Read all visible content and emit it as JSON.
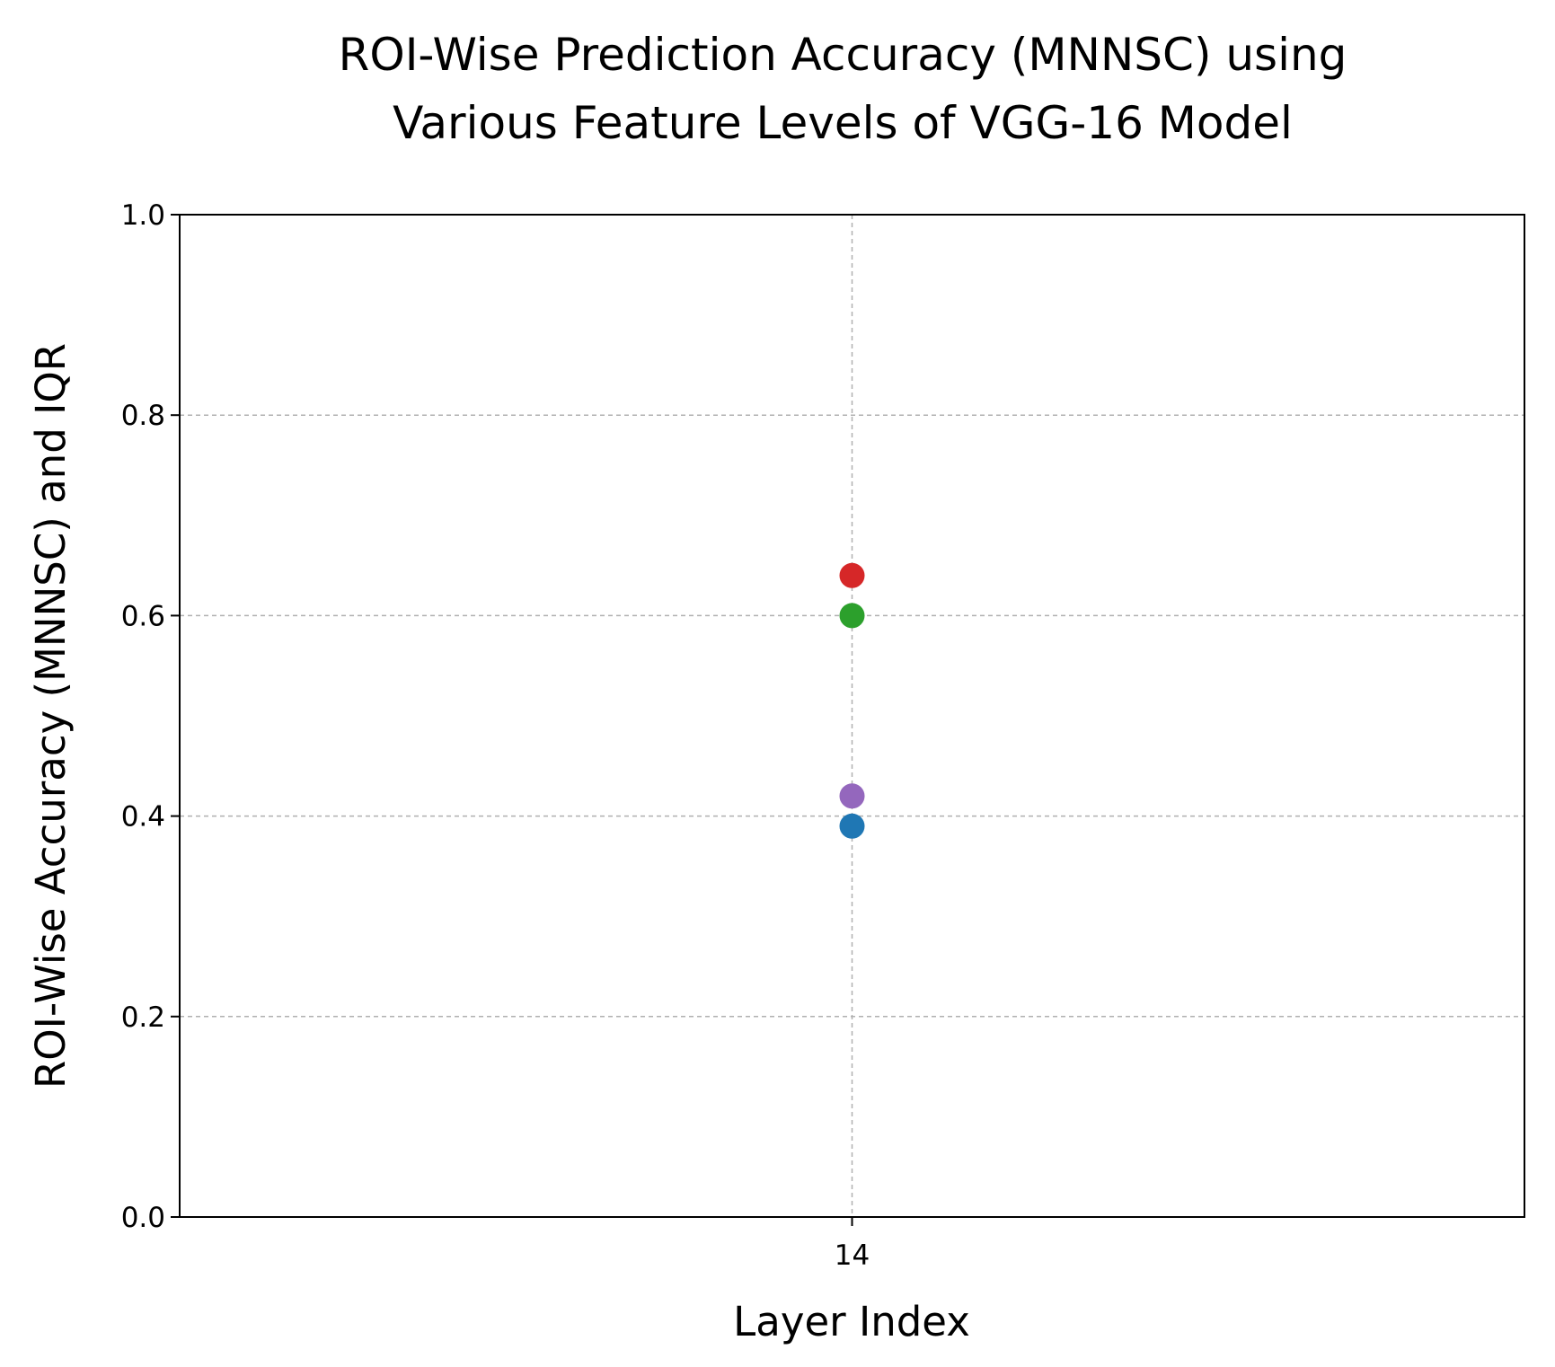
{
  "chart_data": {
    "type": "scatter",
    "title": "ROI-Wise Prediction Accuracy (MNNSC) using\nVarious Feature Levels of VGG-16 Model",
    "xlabel": "Layer Index",
    "ylabel": "ROI-Wise Accuracy (MNNSC) and IQR",
    "x_ticks": [
      "14"
    ],
    "y_ticks": [
      "0.0",
      "0.2",
      "0.4",
      "0.6",
      "0.8",
      "1.0"
    ],
    "xlim": [
      13.5,
      14.5
    ],
    "ylim": [
      0,
      1
    ],
    "grid": true,
    "series": [
      {
        "x": [
          14
        ],
        "values": [
          0.39
        ],
        "color": "#1f77b4"
      },
      {
        "x": [
          14
        ],
        "values": [
          0.42
        ],
        "color": "#9467bd"
      },
      {
        "x": [
          14
        ],
        "values": [
          0.6
        ],
        "color": "#2ca02c"
      },
      {
        "x": [
          14
        ],
        "values": [
          0.64
        ],
        "color": "#d62728"
      }
    ]
  }
}
